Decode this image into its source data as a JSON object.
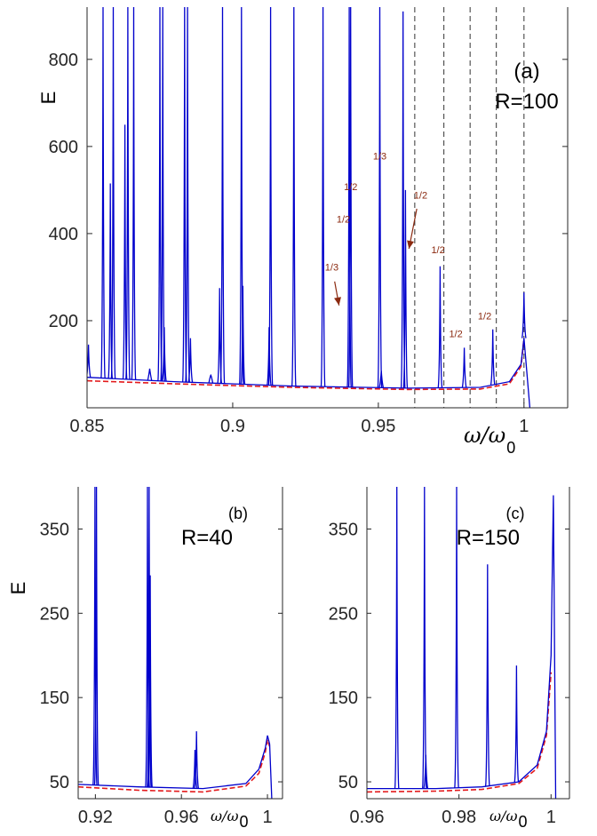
{
  "chart_data": [
    {
      "panel": "(a)",
      "type": "line",
      "annotation": "R=100",
      "xlabel": "ω/ω",
      "xlabel_sub": "0",
      "ylabel": "E",
      "xlim": [
        0.85,
        1.015
      ],
      "ylim": [
        0,
        920
      ],
      "xticks": [
        0.85,
        0.9,
        0.95,
        1
      ],
      "xtick_labels": [
        "0.85",
        "0.9",
        "0.95",
        "1"
      ],
      "yticks": [
        200,
        400,
        600,
        800
      ],
      "ytick_labels": [
        "200",
        "400",
        "600",
        "800"
      ],
      "series": [
        {
          "color": "#0000cc",
          "style": "solid",
          "baseline": [
            [
              0.85,
              70
            ],
            [
              0.88,
              60
            ],
            [
              0.92,
              50
            ],
            [
              0.96,
              45
            ],
            [
              0.985,
              47
            ],
            [
              0.995,
              60
            ],
            [
              0.999,
              100
            ],
            [
              1.0,
              160
            ],
            [
              1.002,
              0
            ]
          ],
          "peaks": [
            {
              "x": 0.8505,
              "y": 145
            },
            {
              "x": 0.8555,
              "y": 920
            },
            {
              "x": 0.858,
              "y": 515
            },
            {
              "x": 0.859,
              "y": 920
            },
            {
              "x": 0.863,
              "y": 650
            },
            {
              "x": 0.864,
              "y": 920
            },
            {
              "x": 0.866,
              "y": 920
            },
            {
              "x": 0.8715,
              "y": 90
            },
            {
              "x": 0.875,
              "y": 920
            },
            {
              "x": 0.876,
              "y": 920
            },
            {
              "x": 0.8765,
              "y": 185
            },
            {
              "x": 0.8835,
              "y": 920
            },
            {
              "x": 0.8845,
              "y": 920
            },
            {
              "x": 0.8855,
              "y": 160
            },
            {
              "x": 0.8925,
              "y": 75
            },
            {
              "x": 0.8955,
              "y": 275
            },
            {
              "x": 0.8965,
              "y": 920
            },
            {
              "x": 0.903,
              "y": 920
            },
            {
              "x": 0.9035,
              "y": 280
            },
            {
              "x": 0.9125,
              "y": 185
            },
            {
              "x": 0.913,
              "y": 920
            },
            {
              "x": 0.921,
              "y": 920
            },
            {
              "x": 0.931,
              "y": 920
            },
            {
              "x": 0.94,
              "y": 920
            },
            {
              "x": 0.9405,
              "y": 920
            },
            {
              "x": 0.9505,
              "y": 920
            },
            {
              "x": 0.951,
              "y": 85
            },
            {
              "x": 0.9585,
              "y": 910
            },
            {
              "x": 0.9593,
              "y": 500
            },
            {
              "x": 0.9712,
              "y": 325
            },
            {
              "x": 0.9795,
              "y": 138
            },
            {
              "x": 0.9893,
              "y": 180
            },
            {
              "x": 1.0,
              "y": 265
            }
          ]
        },
        {
          "color": "#e31a1c",
          "style": "dashed",
          "points": [
            [
              0.85,
              62
            ],
            [
              0.88,
              55
            ],
            [
              0.92,
              47
            ],
            [
              0.96,
              42
            ],
            [
              0.985,
              43
            ],
            [
              0.995,
              55
            ],
            [
              0.999,
              95
            ],
            [
              1.0,
              160
            ]
          ]
        }
      ],
      "vlines": [
        0.9625,
        0.9725,
        0.9815,
        0.9905,
        1.0
      ],
      "labels": [
        {
          "text": "1/3",
          "x": 0.934,
          "y": 315
        },
        {
          "text": "1/2",
          "x": 0.9405,
          "y": 500
        },
        {
          "text": "1/2",
          "x": 0.938,
          "y": 425
        },
        {
          "text": "1/3",
          "x": 0.9505,
          "y": 570
        },
        {
          "text": "1/2",
          "x": 0.9645,
          "y": 480
        },
        {
          "text": "1/2",
          "x": 0.9705,
          "y": 355
        },
        {
          "text": "1/2",
          "x": 0.9766,
          "y": 162
        },
        {
          "text": "1/2",
          "x": 0.9865,
          "y": 203
        }
      ],
      "arrows": [
        {
          "from": [
            0.935,
            290
          ],
          "to": [
            0.9365,
            235
          ]
        },
        {
          "from": [
            0.9632,
            457
          ],
          "to": [
            0.9605,
            365
          ]
        }
      ]
    },
    {
      "panel": "(b)",
      "type": "line",
      "annotation": "R=40",
      "xlabel": "ω/ω",
      "xlabel_sub": "0",
      "ylabel": "E",
      "xlim": [
        0.912,
        1.007
      ],
      "ylim": [
        30,
        400
      ],
      "xticks": [
        0.92,
        0.96,
        1
      ],
      "xtick_labels": [
        "0.92",
        "0.96",
        "1"
      ],
      "yticks": [
        50,
        150,
        250,
        350
      ],
      "ytick_labels": [
        "50",
        "150",
        "250",
        "350"
      ],
      "series": [
        {
          "color": "#0000cc",
          "style": "solid",
          "baseline": [
            [
              0.912,
              47
            ],
            [
              0.94,
              44
            ],
            [
              0.97,
              42
            ],
            [
              0.99,
              48
            ],
            [
              0.996,
              65
            ],
            [
              0.999,
              90
            ],
            [
              1.0,
              105
            ],
            [
              1.001,
              95
            ],
            [
              1.002,
              30
            ]
          ],
          "peaks": [
            {
              "x": 0.9198,
              "y": 400
            },
            {
              "x": 0.9205,
              "y": 400
            },
            {
              "x": 0.9442,
              "y": 400
            },
            {
              "x": 0.945,
              "y": 400
            },
            {
              "x": 0.9455,
              "y": 295
            },
            {
              "x": 0.9663,
              "y": 88
            },
            {
              "x": 0.967,
              "y": 110
            }
          ]
        },
        {
          "color": "#e31a1c",
          "style": "dashed",
          "points": [
            [
              0.912,
              44
            ],
            [
              0.94,
              40
            ],
            [
              0.97,
              38
            ],
            [
              0.99,
              45
            ],
            [
              0.996,
              60
            ],
            [
              0.999,
              85
            ],
            [
              1.0,
              100
            ],
            [
              1.001,
              92
            ]
          ]
        }
      ]
    },
    {
      "panel": "(c)",
      "type": "line",
      "annotation": "R=150",
      "xlabel": "ω/ω",
      "xlabel_sub": "0",
      "ylabel": "",
      "xlim": [
        0.96,
        1.004
      ],
      "ylim": [
        30,
        400
      ],
      "xticks": [
        0.96,
        0.98,
        1
      ],
      "xtick_labels": [
        "0.96",
        "0.98",
        "1"
      ],
      "yticks": [
        50,
        150,
        250,
        350
      ],
      "ytick_labels": [
        "50",
        "150",
        "250",
        "350"
      ],
      "series": [
        {
          "color": "#0000cc",
          "style": "solid",
          "baseline": [
            [
              0.96,
              42
            ],
            [
              0.975,
              42
            ],
            [
              0.985,
              44
            ],
            [
              0.993,
              50
            ],
            [
              0.997,
              70
            ],
            [
              0.999,
              110
            ],
            [
              1.0,
              200
            ],
            [
              1.0005,
              390
            ],
            [
              1.001,
              30
            ]
          ],
          "peaks": [
            {
              "x": 0.9665,
              "y": 400
            },
            {
              "x": 0.9725,
              "y": 400
            },
            {
              "x": 0.9728,
              "y": 82
            },
            {
              "x": 0.9795,
              "y": 400
            },
            {
              "x": 0.9862,
              "y": 308
            },
            {
              "x": 0.9925,
              "y": 188
            }
          ]
        },
        {
          "color": "#e31a1c",
          "style": "dashed",
          "points": [
            [
              0.96,
              38
            ],
            [
              0.975,
              39
            ],
            [
              0.985,
              41
            ],
            [
              0.993,
              48
            ],
            [
              0.997,
              66
            ],
            [
              0.999,
              105
            ],
            [
              1.0,
              180
            ]
          ]
        }
      ]
    }
  ]
}
